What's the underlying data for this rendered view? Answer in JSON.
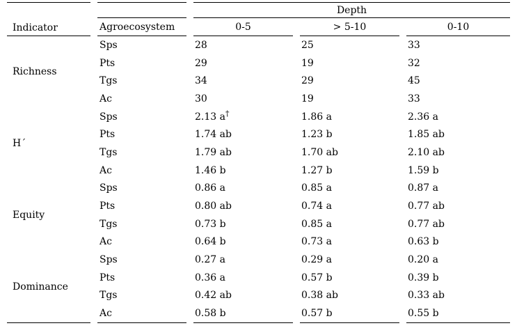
{
  "table": {
    "header": {
      "indicator": "Indicator",
      "agroecosystem": "Agroecosystem",
      "depth": "Depth",
      "depth_cols": [
        "0-5",
        "> 5-10",
        "0-10"
      ]
    },
    "footnote_symbol": "†",
    "sections": [
      {
        "indicator": "Richness",
        "rows": [
          {
            "agroecosystem": "Sps",
            "values": [
              "28",
              "25",
              "33"
            ]
          },
          {
            "agroecosystem": "Pts",
            "values": [
              "29",
              "19",
              "32"
            ]
          },
          {
            "agroecosystem": "Tgs",
            "values": [
              "34",
              "29",
              "45"
            ]
          },
          {
            "agroecosystem": "Ac",
            "values": [
              "30",
              "19",
              "33"
            ]
          }
        ]
      },
      {
        "indicator": "H´",
        "rows": [
          {
            "agroecosystem": "Sps",
            "values": [
              "2.13 a†",
              "1.86 a",
              "2.36 a"
            ]
          },
          {
            "agroecosystem": "Pts",
            "values": [
              "1.74 ab",
              "1.23 b",
              "1.85 ab"
            ]
          },
          {
            "agroecosystem": "Tgs",
            "values": [
              "1.79 ab",
              "1.70 ab",
              "2.10 ab"
            ]
          },
          {
            "agroecosystem": "Ac",
            "values": [
              "1.46 b",
              "1.27 b",
              "1.59 b"
            ]
          }
        ]
      },
      {
        "indicator": "Equity",
        "rows": [
          {
            "agroecosystem": "Sps",
            "values": [
              "0.86 a",
              "0.85 a",
              "0.87 a"
            ]
          },
          {
            "agroecosystem": "Pts",
            "values": [
              "0.80 ab",
              "0.74 a",
              "0.77 ab"
            ]
          },
          {
            "agroecosystem": "Tgs",
            "values": [
              "0.73 b",
              "0.85 a",
              "0.77 ab"
            ]
          },
          {
            "agroecosystem": "Ac",
            "values": [
              "0.64 b",
              "0.73 a",
              "0.63 b"
            ]
          }
        ]
      },
      {
        "indicator": "Dominance",
        "rows": [
          {
            "agroecosystem": "Sps",
            "values": [
              "0.27 a",
              "0.29 a",
              "0.20 a"
            ]
          },
          {
            "agroecosystem": "Pts",
            "values": [
              "0.36 a",
              "0.57 b",
              "0.39 b"
            ]
          },
          {
            "agroecosystem": "Tgs",
            "values": [
              "0.42 ab",
              "0.38 ab",
              "0.33 ab"
            ]
          },
          {
            "agroecosystem": "Ac",
            "values": [
              "0.58 b",
              "0.57 b",
              "0.55 b"
            ]
          }
        ]
      }
    ],
    "colors": {
      "text": "#000000",
      "background": "#ffffff",
      "rule": "#000000"
    }
  }
}
